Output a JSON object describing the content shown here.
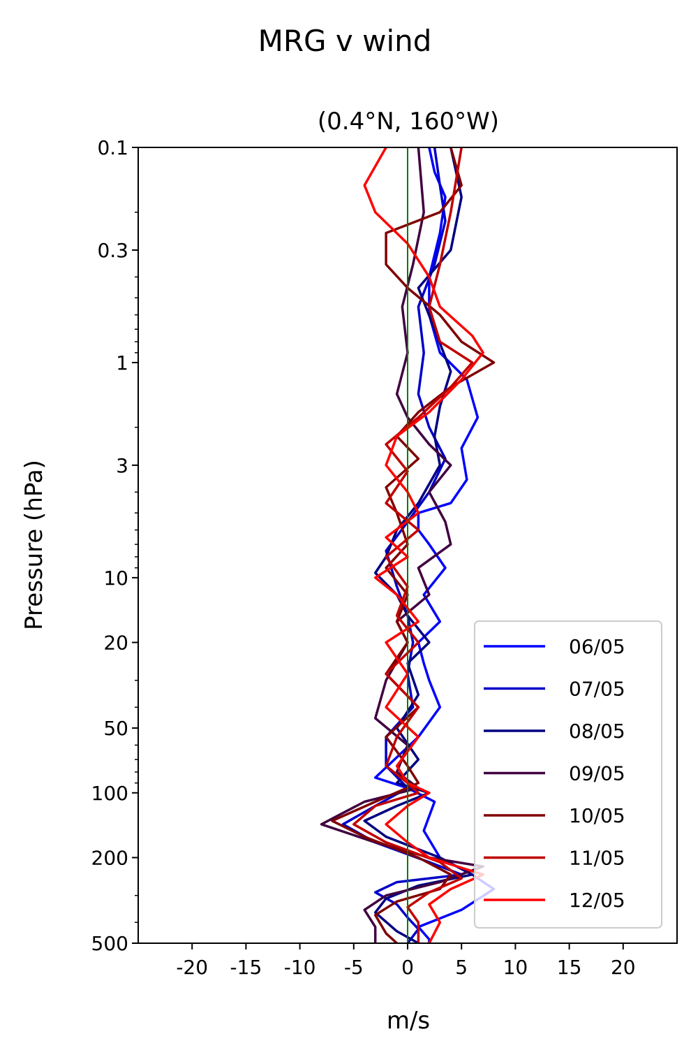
{
  "figure": {
    "suptitle": "MRG v wind",
    "title": "(0.4°N, 160°W)"
  },
  "chart_data": {
    "type": "line",
    "title": "(0.4°N, 160°W)",
    "xlabel": "m/s",
    "ylabel": "Pressure (hPa)",
    "xlim": [
      -25,
      25
    ],
    "ylim": [
      500,
      0.1
    ],
    "yscale": "log",
    "y_inverted": true,
    "x_ticks": [
      -20,
      -15,
      -10,
      -5,
      0,
      5,
      10,
      15,
      20
    ],
    "x_tick_labels": [
      "-20",
      "-15",
      "-10",
      "-5",
      "0",
      "5",
      "10",
      "15",
      "20"
    ],
    "y_ticks": [
      0.1,
      0.3,
      1,
      3,
      10,
      20,
      50,
      100,
      200,
      500
    ],
    "y_tick_labels": [
      "0.1",
      "0.3",
      "1",
      "3",
      "10",
      "20",
      "50",
      "100",
      "200",
      "500"
    ],
    "grid": false,
    "legend_position": "lower-right",
    "zero_line_color": "#007a00",
    "series": [
      {
        "name": "06/05",
        "color": "#0000ff",
        "points": [
          [
            2,
            0.1
          ],
          [
            2.5,
            0.13
          ],
          [
            3.5,
            0.17
          ],
          [
            3,
            0.25
          ],
          [
            2,
            0.4
          ],
          [
            2,
            0.6
          ],
          [
            3,
            0.9
          ],
          [
            5.5,
            1.2
          ],
          [
            6.5,
            1.8
          ],
          [
            5,
            2.5
          ],
          [
            5.5,
            3.5
          ],
          [
            4,
            4.5
          ],
          [
            1,
            5
          ],
          [
            1,
            6
          ],
          [
            2,
            7
          ],
          [
            3.5,
            9
          ],
          [
            1.5,
            12
          ],
          [
            3,
            16
          ],
          [
            1,
            20
          ],
          [
            1.5,
            25
          ],
          [
            2,
            30
          ],
          [
            3,
            40
          ],
          [
            1,
            55
          ],
          [
            -3,
            85
          ],
          [
            0,
            95
          ],
          [
            2.5,
            110
          ],
          [
            1.5,
            150
          ],
          [
            3,
            200
          ],
          [
            6,
            240
          ],
          [
            8,
            280
          ],
          [
            5,
            350
          ],
          [
            1,
            420
          ],
          [
            2,
            480
          ],
          [
            2,
            500
          ]
        ]
      },
      {
        "name": "07/05",
        "color": "#0000c8",
        "points": [
          [
            2.5,
            0.1
          ],
          [
            3,
            0.15
          ],
          [
            3.5,
            0.22
          ],
          [
            2.5,
            0.35
          ],
          [
            1,
            0.55
          ],
          [
            1.5,
            0.9
          ],
          [
            1,
            1.4
          ],
          [
            2,
            2
          ],
          [
            3.5,
            2.8
          ],
          [
            2,
            4
          ],
          [
            0,
            5.5
          ],
          [
            -2,
            7.5
          ],
          [
            -1,
            11
          ],
          [
            0,
            15
          ],
          [
            0.5,
            20
          ],
          [
            0,
            28
          ],
          [
            0.5,
            40
          ],
          [
            -2,
            55
          ],
          [
            -2,
            75
          ],
          [
            0,
            95
          ],
          [
            -3,
            115
          ],
          [
            -6,
            140
          ],
          [
            -3,
            170
          ],
          [
            2,
            210
          ],
          [
            5,
            240
          ],
          [
            -1,
            260
          ],
          [
            -3,
            290
          ],
          [
            -1,
            330
          ],
          [
            0,
            380
          ],
          [
            1,
            430
          ],
          [
            0,
            500
          ]
        ]
      },
      {
        "name": "08/05",
        "color": "#000080",
        "points": [
          [
            4,
            0.1
          ],
          [
            5,
            0.17
          ],
          [
            4,
            0.3
          ],
          [
            1,
            0.45
          ],
          [
            2.5,
            0.7
          ],
          [
            4,
            1.1
          ],
          [
            3,
            1.6
          ],
          [
            2.5,
            2.2
          ],
          [
            3,
            3
          ],
          [
            1,
            4.5
          ],
          [
            -1,
            6
          ],
          [
            -2,
            8
          ],
          [
            -3,
            9.5
          ],
          [
            -1,
            12
          ],
          [
            0,
            15
          ],
          [
            2,
            20
          ],
          [
            0,
            25
          ],
          [
            1,
            35
          ],
          [
            -1,
            50
          ],
          [
            1,
            70
          ],
          [
            -1,
            90
          ],
          [
            2,
            100
          ],
          [
            -1,
            115
          ],
          [
            -4,
            135
          ],
          [
            -2,
            160
          ],
          [
            3,
            200
          ],
          [
            6,
            240
          ],
          [
            1,
            270
          ],
          [
            -2,
            310
          ],
          [
            -3,
            360
          ],
          [
            -1,
            440
          ],
          [
            1,
            500
          ]
        ]
      },
      {
        "name": "09/05",
        "color": "#400040",
        "points": [
          [
            1,
            0.1
          ],
          [
            1.5,
            0.2
          ],
          [
            0.5,
            0.35
          ],
          [
            -0.5,
            0.55
          ],
          [
            0,
            0.9
          ],
          [
            -1,
            1.4
          ],
          [
            0,
            1.8
          ],
          [
            2,
            2.4
          ],
          [
            4,
            3
          ],
          [
            2,
            4
          ],
          [
            3.5,
            5.5
          ],
          [
            4,
            7
          ],
          [
            1,
            9
          ],
          [
            2,
            12
          ],
          [
            -1,
            16
          ],
          [
            0,
            20
          ],
          [
            -2,
            30
          ],
          [
            -3,
            45
          ],
          [
            0,
            60
          ],
          [
            -1,
            80
          ],
          [
            1,
            95
          ],
          [
            -4,
            110
          ],
          [
            -8,
            140
          ],
          [
            -3,
            170
          ],
          [
            2,
            200
          ],
          [
            7,
            220
          ],
          [
            3,
            260
          ],
          [
            -2,
            300
          ],
          [
            -4,
            350
          ],
          [
            -3,
            420
          ],
          [
            -3,
            500
          ]
        ]
      },
      {
        "name": "10/05",
        "color": "#800000",
        "points": [
          [
            4,
            0.1
          ],
          [
            5,
            0.15
          ],
          [
            3,
            0.2
          ],
          [
            -2,
            0.25
          ],
          [
            -2,
            0.35
          ],
          [
            0,
            0.45
          ],
          [
            3,
            0.6
          ],
          [
            5,
            0.8
          ],
          [
            8,
            1.0
          ],
          [
            4,
            1.3
          ],
          [
            1,
            1.7
          ],
          [
            -1,
            2.2
          ],
          [
            1,
            2.8
          ],
          [
            -2,
            3.8
          ],
          [
            -1,
            5
          ],
          [
            0,
            7
          ],
          [
            -2,
            9
          ],
          [
            0,
            12
          ],
          [
            -1,
            16
          ],
          [
            0,
            20
          ],
          [
            -2,
            28
          ],
          [
            1,
            40
          ],
          [
            -2,
            55
          ],
          [
            0,
            75
          ],
          [
            1,
            90
          ],
          [
            -3,
            110
          ],
          [
            -7,
            135
          ],
          [
            -4,
            160
          ],
          [
            1,
            200
          ],
          [
            4,
            240
          ],
          [
            3,
            280
          ],
          [
            -1,
            320
          ],
          [
            -3,
            370
          ],
          [
            -2,
            450
          ],
          [
            -1,
            500
          ]
        ]
      },
      {
        "name": "11/05",
        "color": "#c00000",
        "points": [
          [
            5,
            0.1
          ],
          [
            4,
            0.2
          ],
          [
            3,
            0.35
          ],
          [
            2,
            0.55
          ],
          [
            3,
            0.8
          ],
          [
            6,
            1.0
          ],
          [
            4,
            1.3
          ],
          [
            1,
            1.8
          ],
          [
            -2,
            2.4
          ],
          [
            0,
            3.2
          ],
          [
            -2,
            4.5
          ],
          [
            1,
            6
          ],
          [
            -2,
            8
          ],
          [
            0,
            11
          ],
          [
            -1,
            15
          ],
          [
            1,
            20
          ],
          [
            -2,
            28
          ],
          [
            1,
            40
          ],
          [
            -1,
            55
          ],
          [
            -2,
            75
          ],
          [
            0,
            90
          ],
          [
            1,
            100
          ],
          [
            -3,
            115
          ],
          [
            -5,
            140
          ],
          [
            -2,
            170
          ],
          [
            3,
            210
          ],
          [
            5,
            250
          ],
          [
            2,
            290
          ],
          [
            0,
            340
          ],
          [
            1,
            400
          ],
          [
            1,
            500
          ]
        ]
      },
      {
        "name": "12/05",
        "color": "#ff0000",
        "points": [
          [
            -2,
            0.1
          ],
          [
            -4,
            0.15
          ],
          [
            -3,
            0.2
          ],
          [
            0,
            0.28
          ],
          [
            2,
            0.4
          ],
          [
            3,
            0.55
          ],
          [
            6,
            0.75
          ],
          [
            7,
            0.9
          ],
          [
            5,
            1.2
          ],
          [
            2,
            1.7
          ],
          [
            -1,
            2.2
          ],
          [
            -2,
            3
          ],
          [
            0,
            4
          ],
          [
            1,
            5
          ],
          [
            -2,
            6.5
          ],
          [
            0,
            8
          ],
          [
            -3,
            10
          ],
          [
            -1,
            12
          ],
          [
            1,
            16
          ],
          [
            -2,
            20
          ],
          [
            0,
            28
          ],
          [
            -2,
            40
          ],
          [
            1,
            55
          ],
          [
            -1,
            75
          ],
          [
            0,
            90
          ],
          [
            2,
            100
          ],
          [
            0,
            115
          ],
          [
            -2,
            140
          ],
          [
            0,
            170
          ],
          [
            2,
            200
          ],
          [
            7,
            240
          ],
          [
            4,
            280
          ],
          [
            2,
            330
          ],
          [
            3,
            400
          ],
          [
            2,
            500
          ]
        ]
      }
    ]
  }
}
